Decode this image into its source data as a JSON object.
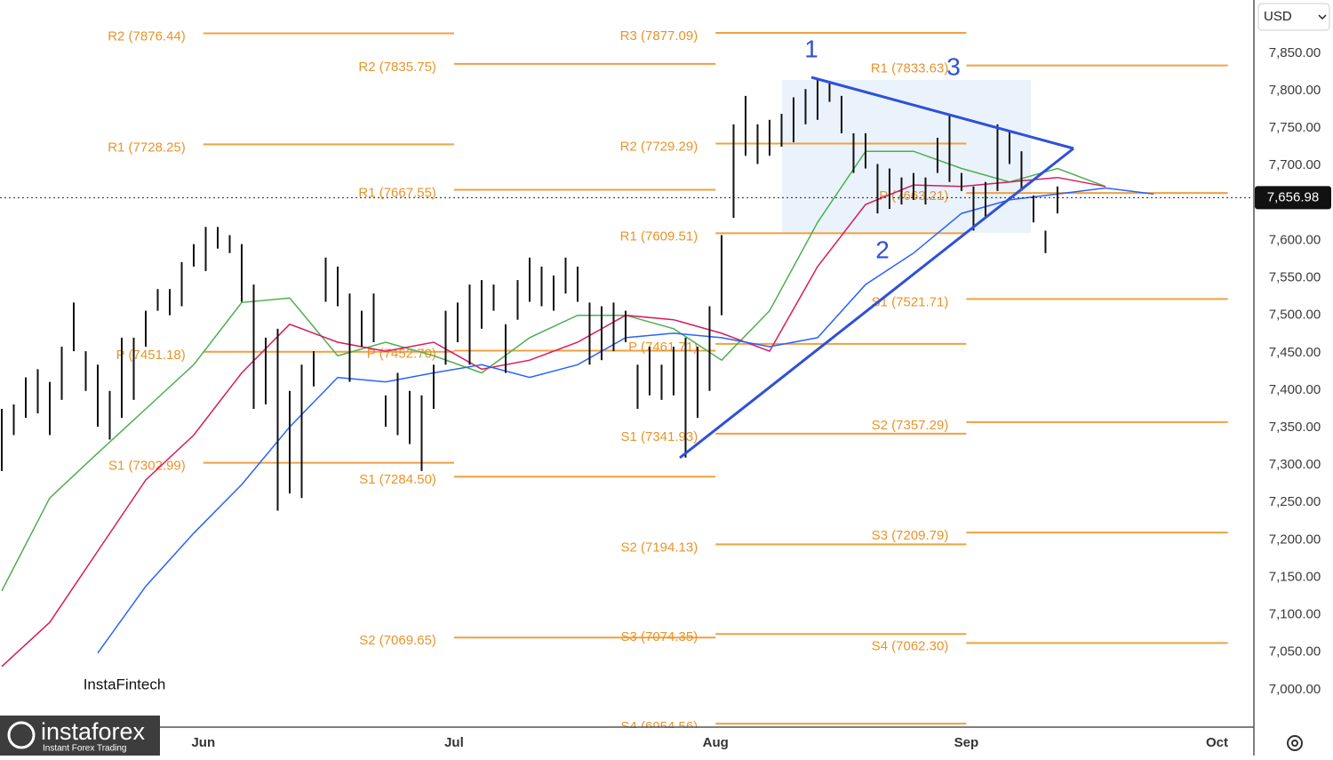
{
  "ui": {
    "currency": "USD",
    "watermark": "InstaFintech",
    "logo": "instaforex",
    "logo_tagline": "Instant Forex Trading"
  },
  "chart_data": {
    "type": "ohlc",
    "annotations": [
      "1",
      "2",
      "3"
    ],
    "ylim": [
      6950,
      7921
    ],
    "yticks": [
      {
        "value": 7000,
        "label": "7,000.00"
      },
      {
        "value": 7050,
        "label": "7,050.00"
      },
      {
        "value": 7100,
        "label": "7,100.00"
      },
      {
        "value": 7150,
        "label": "7,150.00"
      },
      {
        "value": 7200,
        "label": "7,200.00"
      },
      {
        "value": 7250,
        "label": "7,250.00"
      },
      {
        "value": 7300,
        "label": "7,300.00"
      },
      {
        "value": 7350,
        "label": "7,350.00"
      },
      {
        "value": 7400,
        "label": "7,400.00"
      },
      {
        "value": 7450,
        "label": "7,450.00"
      },
      {
        "value": 7500,
        "label": "7,500.00"
      },
      {
        "value": 7550,
        "label": "7,550.00"
      },
      {
        "value": 7600,
        "label": "7,600.00"
      },
      {
        "value": 7650,
        "label": "7,650.00"
      },
      {
        "value": 7700,
        "label": "7,700.00"
      },
      {
        "value": 7750,
        "label": "7,750.00"
      },
      {
        "value": 7800,
        "label": "7,800.00"
      },
      {
        "value": 7850,
        "label": "7,850.00"
      }
    ],
    "xlim": [
      0,
      104.3
    ],
    "xticks": [
      {
        "value": 16.8,
        "label": "Jun"
      },
      {
        "value": 37.7,
        "label": "Jul"
      },
      {
        "value": 59.5,
        "label": "Aug"
      },
      {
        "value": 80.4,
        "label": "Sep"
      },
      {
        "value": 101.3,
        "label": "Oct"
      }
    ],
    "grid": true,
    "last_price": {
      "value": 7656.98,
      "label": "7,656.98"
    },
    "bars": {
      "color": "#111111",
      "high": [
        7375,
        7381,
        7417,
        7428,
        7411,
        7458,
        7517,
        7452,
        7434,
        7399,
        7470,
        7470,
        7506,
        7535,
        7535,
        7571,
        7595,
        7618,
        7618,
        7607,
        7595,
        7541,
        7470,
        7482,
        7399,
        7434,
        7452,
        7577,
        7565,
        7529,
        7506,
        7529,
        7393,
        7423,
        7399,
        7393,
        7434,
        7506,
        7517,
        7541,
        7547,
        7541,
        7488,
        7547,
        7577,
        7565,
        7553,
        7577,
        7565,
        7517,
        7512,
        7517,
        7506,
        7434,
        7458,
        7434,
        7458,
        7470,
        7458,
        7512,
        7607,
        7755,
        7793,
        7755,
        7761,
        7769,
        7791,
        7802,
        7817,
        7812,
        7793,
        7743,
        7743,
        7702,
        7696,
        7684,
        7690,
        7684,
        7737,
        7769,
        7690,
        7672,
        7678,
        7755,
        7745,
        7719,
        7660,
        7613,
        7672
      ],
      "low": [
        7292,
        7340,
        7363,
        7369,
        7340,
        7387,
        7452,
        7399,
        7351,
        7334,
        7363,
        7387,
        7458,
        7506,
        7500,
        7512,
        7565,
        7559,
        7589,
        7583,
        7518,
        7375,
        7381,
        7239,
        7262,
        7256,
        7405,
        7518,
        7512,
        7411,
        7458,
        7464,
        7351,
        7340,
        7328,
        7292,
        7375,
        7434,
        7464,
        7434,
        7482,
        7506,
        7423,
        7494,
        7518,
        7512,
        7506,
        7529,
        7518,
        7434,
        7440,
        7452,
        7464,
        7375,
        7393,
        7387,
        7393,
        7310,
        7363,
        7399,
        7500,
        7630,
        7713,
        7702,
        7713,
        7725,
        7731,
        7755,
        7761,
        7785,
        7743,
        7690,
        7696,
        7636,
        7642,
        7648,
        7654,
        7648,
        7690,
        7678,
        7666,
        7613,
        7630,
        7666,
        7702,
        7666,
        7624,
        7583,
        7636
      ]
    },
    "series": [
      {
        "color": "#4caf50",
        "x": [
          0,
          4,
          8,
          12,
          16,
          20,
          24,
          28,
          32,
          36,
          40,
          44,
          48,
          52,
          56,
          60,
          64,
          68,
          72,
          76,
          80,
          84,
          88,
          92
        ],
        "values": [
          7132,
          7256,
          7316,
          7375,
          7434,
          7517,
          7523,
          7446,
          7464,
          7446,
          7423,
          7470,
          7500,
          7500,
          7482,
          7440,
          7506,
          7624,
          7719,
          7719,
          7696,
          7678,
          7696,
          7672
        ]
      },
      {
        "color": "#d81b60",
        "x": [
          0,
          4,
          8,
          12,
          16,
          20,
          24,
          28,
          32,
          36,
          40,
          44,
          48,
          52,
          56,
          60,
          64,
          68,
          72,
          76,
          80,
          84,
          88,
          92
        ],
        "values": [
          7031,
          7090,
          7185,
          7280,
          7340,
          7423,
          7488,
          7464,
          7452,
          7464,
          7428,
          7440,
          7464,
          7500,
          7494,
          7476,
          7452,
          7565,
          7648,
          7674,
          7672,
          7678,
          7684,
          7672
        ]
      },
      {
        "color": "#2962ff",
        "x": [
          8,
          12,
          16,
          20,
          24,
          28,
          32,
          36,
          40,
          44,
          48,
          52,
          56,
          60,
          64,
          68,
          72,
          76,
          80,
          84,
          88,
          92,
          96
        ],
        "values": [
          7049,
          7138,
          7209,
          7274,
          7351,
          7417,
          7411,
          7423,
          7434,
          7417,
          7434,
          7470,
          7476,
          7470,
          7458,
          7470,
          7541,
          7583,
          7636,
          7654,
          7662,
          7670,
          7662
        ]
      }
    ],
    "pivot_color": "#f0a040",
    "pivots": [
      {
        "start": 16.8,
        "end": 37.7,
        "levels": [
          {
            "label": "R2 (7876.44)",
            "value": 7876.44
          },
          {
            "label": "R1 (7728.25)",
            "value": 7728.25
          },
          {
            "label": "P (7451.18)",
            "value": 7451.18
          },
          {
            "label": "S1 (7302.99)",
            "value": 7302.99
          }
        ]
      },
      {
        "start": 37.7,
        "end": 59.5,
        "levels": [
          {
            "label": "R2 (7835.75)",
            "value": 7835.75
          },
          {
            "label": "R1 (7667.55)",
            "value": 7667.55
          },
          {
            "label": "P (7452.70)",
            "value": 7452.7
          },
          {
            "label": "S1 (7284.50)",
            "value": 7284.5
          },
          {
            "label": "S2 (7069.65)",
            "value": 7069.65
          }
        ]
      },
      {
        "start": 59.5,
        "end": 80.4,
        "levels": [
          {
            "label": "R3 (7877.09)",
            "value": 7877.09
          },
          {
            "label": "R2 (7729.29)",
            "value": 7729.29
          },
          {
            "label": "R1 (7609.51)",
            "value": 7609.51
          },
          {
            "label": "P (7461.71)",
            "value": 7461.71
          },
          {
            "label": "S1 (7341.93)",
            "value": 7341.93
          },
          {
            "label": "S2 (7194.13)",
            "value": 7194.13
          },
          {
            "label": "S3 (7074.35)",
            "value": 7074.35
          },
          {
            "label": "S4 (6954.56)",
            "value": 6954.56
          }
        ]
      },
      {
        "start": 80.4,
        "end": 102.2,
        "levels": [
          {
            "label": "R1 (7833.63)",
            "value": 7833.63
          },
          {
            "label": "P (7663.21)",
            "value": 7663.21
          },
          {
            "label": "S1 (7521.71)",
            "value": 7521.71
          },
          {
            "label": "S2 (7357.29)",
            "value": 7357.29
          },
          {
            "label": "S3 (7209.79)",
            "value": 7209.79
          },
          {
            "label": "S4 (7062.30)",
            "value": 7062.3
          }
        ]
      }
    ]
  }
}
